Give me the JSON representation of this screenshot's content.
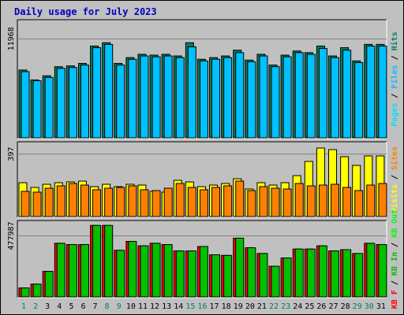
{
  "chart_data": {
    "type": "bar",
    "title": "Daily usage for July 2023",
    "categories": [
      "1",
      "2",
      "3",
      "4",
      "5",
      "6",
      "7",
      "8",
      "9",
      "10",
      "11",
      "12",
      "13",
      "14",
      "15",
      "16",
      "17",
      "18",
      "19",
      "20",
      "21",
      "22",
      "23",
      "24",
      "25",
      "26",
      "27",
      "28",
      "29",
      "30",
      "31"
    ],
    "weekend_days": [
      "1",
      "2",
      "8",
      "9",
      "15",
      "16",
      "22",
      "23",
      "29",
      "30"
    ],
    "colors": {
      "hits": "#00805c",
      "files": "#00c0ff",
      "pages": "#00e0ff",
      "visits": "#ffff00",
      "sites": "#ff8000",
      "kb_f": "#ff0000",
      "kb_in": "#00c000",
      "kb_out": "#00ff00",
      "weekday_label": "#000000",
      "weekend_label": "#00805c",
      "title": "#0000c0"
    },
    "panels": [
      {
        "id": "hits-files",
        "ytick": "11968",
        "ymax": 14000,
        "legend": [
          {
            "text": "Pages",
            "color": "#00e0ff"
          },
          {
            "text": " / ",
            "color": "#000000"
          },
          {
            "text": "Files",
            "color": "#00c0ff"
          },
          {
            "text": " / ",
            "color": "#000000"
          },
          {
            "text": "Hits",
            "color": "#00805c"
          }
        ],
        "series": [
          {
            "name": "Hits",
            "color": "#00805c",
            "values": [
              8200,
              7000,
              7500,
              8600,
              8700,
              9000,
              11100,
              11500,
              9000,
              9700,
              10100,
              10000,
              10100,
              9900,
              11500,
              9500,
              9700,
              9900,
              10600,
              9400,
              10100,
              8800,
              10000,
              10500,
              10300,
              11100,
              9900,
              10900,
              9300,
              11300,
              11300
            ]
          },
          {
            "name": "Files",
            "color": "#00c0ff",
            "values": [
              8000,
              6900,
              7300,
              8400,
              8500,
              8800,
              10900,
              11300,
              8800,
              9500,
              9900,
              9800,
              9900,
              9700,
              11000,
              9300,
              9500,
              9700,
              10300,
              9200,
              9900,
              8600,
              9800,
              10300,
              10100,
              10800,
              9700,
              10600,
              9100,
              11100,
              11100
            ]
          }
        ]
      },
      {
        "id": "visits-sites",
        "ytick": "397",
        "ymax": 460,
        "legend": [
          {
            "text": "Visits",
            "color": "#ffff00"
          },
          {
            "text": " / ",
            "color": "#000000"
          },
          {
            "text": "Sites",
            "color": "#ff8000"
          }
        ],
        "series": [
          {
            "name": "Visits",
            "color": "#ffff00",
            "values": [
              215,
              185,
              205,
              215,
              220,
              225,
              190,
              205,
              190,
              205,
              200,
              160,
              155,
              230,
              220,
              190,
              200,
              210,
              240,
              175,
              215,
              200,
              215,
              260,
              350,
              435,
              425,
              380,
              325,
              385,
              385
            ]
          },
          {
            "name": "Sites",
            "color": "#ff8000",
            "values": [
              160,
              155,
              180,
              195,
              210,
              200,
              170,
              180,
              185,
              195,
              170,
              165,
              180,
              210,
              185,
              170,
              185,
              195,
              225,
              165,
              190,
              180,
              175,
              210,
              195,
              200,
              205,
              185,
              165,
              200,
              210
            ]
          }
        ]
      },
      {
        "id": "kbytes",
        "ytick": "477987",
        "ymax": 580000,
        "legend": [
          {
            "text": "KB F",
            "color": "#ff0000"
          },
          {
            "text": " / ",
            "color": "#000000"
          },
          {
            "text": "KB In",
            "color": "#00c000"
          },
          {
            "text": " / ",
            "color": "#000000"
          },
          {
            "text": "KB Out",
            "color": "#00ff00"
          }
        ],
        "series": [
          {
            "name": "KB F",
            "color": "#ff0000",
            "values": [
              70000,
              100000,
              200000,
              420000,
              410000,
              410000,
              560000,
              560000,
              365000,
              435000,
              400000,
              420000,
              410000,
              360000,
              360000,
              395000,
              330000,
              325000,
              460000,
              385000,
              340000,
              240000,
              305000,
              375000,
              375000,
              400000,
              360000,
              370000,
              340000,
              420000,
              410000
            ]
          },
          {
            "name": "KB In",
            "color": "#00c000",
            "values": [
              70000,
              100000,
              200000,
              420000,
              410000,
              410000,
              560000,
              560000,
              365000,
              435000,
              400000,
              420000,
              410000,
              360000,
              360000,
              395000,
              330000,
              325000,
              460000,
              385000,
              340000,
              240000,
              305000,
              375000,
              375000,
              400000,
              360000,
              370000,
              340000,
              420000,
              410000
            ]
          }
        ]
      }
    ]
  }
}
